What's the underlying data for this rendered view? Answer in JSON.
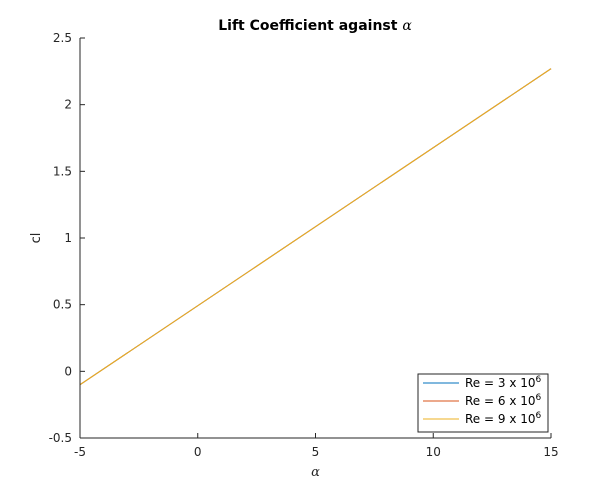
{
  "chart_data": {
    "type": "line",
    "title_text": "Lift Coefficient against ",
    "title_symbol": "α",
    "xlabel": "α",
    "ylabel": "cl",
    "xlim": [
      -5,
      15
    ],
    "ylim": [
      -0.5,
      2.5
    ],
    "xticks": [
      -5,
      0,
      5,
      10,
      15
    ],
    "yticks": [
      -0.5,
      0,
      0.5,
      1,
      1.5,
      2,
      2.5
    ],
    "xtick_labels": [
      "-5",
      "0",
      "5",
      "10",
      "15"
    ],
    "ytick_labels": [
      "-0.5",
      "0",
      "0.5",
      "1",
      "1.5",
      "2",
      "2.5"
    ],
    "grid": false,
    "legend_placement": "bottom-right",
    "series": [
      {
        "name": "Re = 3 x 10",
        "exponent": "6",
        "color": "#0072BD",
        "x": [
          -5,
          15
        ],
        "y": [
          -0.1,
          2.27
        ]
      },
      {
        "name": "Re = 6 x 10",
        "exponent": "6",
        "color": "#D95319",
        "x": [
          -5,
          15
        ],
        "y": [
          -0.1,
          2.27
        ]
      },
      {
        "name": "Re = 9 x 10",
        "exponent": "6",
        "color": "#EDB120",
        "x": [
          -5,
          15
        ],
        "y": [
          -0.1,
          2.27
        ]
      }
    ]
  }
}
